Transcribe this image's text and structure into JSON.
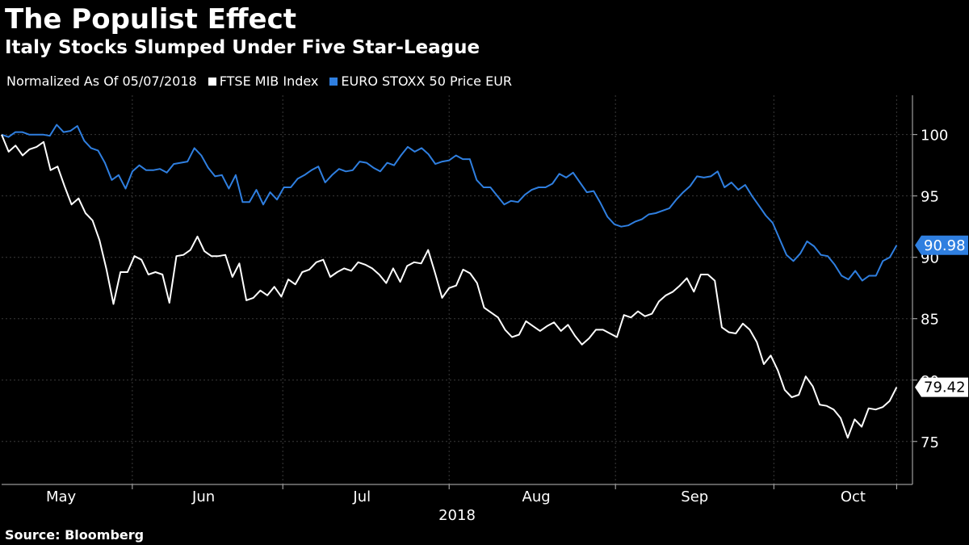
{
  "header": {
    "title": "The Populist Effect",
    "subtitle": "Italy Stocks Slumped Under Five Star-League"
  },
  "legend": {
    "note": "Normalized As Of 05/07/2018"
  },
  "footer": {
    "source": "Source: Bloomberg"
  },
  "colors": {
    "background": "#000000",
    "ftse": "#ffffff",
    "stoxx": "#2f7fe0",
    "grid": "#3a3a3a",
    "axis": "#bbbbbb"
  },
  "chart_data": {
    "type": "line",
    "xlabel": "2018",
    "ylabel": "",
    "ylim": [
      71.5,
      103.2
    ],
    "xlim": [
      0,
      115
    ],
    "grid": true,
    "legend_position": "top-left",
    "x_ticks": [
      {
        "label": "May",
        "x": 7.5
      },
      {
        "label": "Jun",
        "x": 25.5
      },
      {
        "label": "Jul",
        "x": 45.5
      },
      {
        "label": "Aug",
        "x": 67.5
      },
      {
        "label": "Sep",
        "x": 87.5
      },
      {
        "label": "Oct",
        "x": 107.5
      }
    ],
    "y_ticks": [
      75,
      80,
      85,
      90,
      95,
      100
    ],
    "series": [
      {
        "name": "FTSE MIB Index",
        "color": "#ffffff",
        "end_label": "79.42",
        "values": [
          100.0,
          98.6,
          99.1,
          98.3,
          98.8,
          99.0,
          99.4,
          97.1,
          97.4,
          95.8,
          94.3,
          94.8,
          93.6,
          93.0,
          91.4,
          89.0,
          86.2,
          88.8,
          88.8,
          90.1,
          89.8,
          88.6,
          88.8,
          88.6,
          86.3,
          90.1,
          90.2,
          90.6,
          91.7,
          90.5,
          90.1,
          90.1,
          90.2,
          88.4,
          89.5,
          86.5,
          86.7,
          87.3,
          86.9,
          87.6,
          86.8,
          88.2,
          87.8,
          88.8,
          89.0,
          89.6,
          89.8,
          88.4,
          88.8,
          89.1,
          88.9,
          89.6,
          89.4,
          89.1,
          88.6,
          87.9,
          89.1,
          88.0,
          89.3,
          89.6,
          89.5,
          90.6,
          88.7,
          86.7,
          87.5,
          87.7,
          89.0,
          88.7,
          87.9,
          85.9,
          85.5,
          85.1,
          84.1,
          83.5,
          83.7,
          84.8,
          84.4,
          84.0,
          84.4,
          84.7,
          84.0,
          84.5,
          83.6,
          82.9,
          83.4,
          84.1,
          84.1,
          83.8,
          83.5,
          85.3,
          85.1,
          85.6,
          85.2,
          85.4,
          86.4,
          86.9,
          87.2,
          87.7,
          88.3,
          87.2,
          88.6,
          88.6,
          88.1,
          84.3,
          83.9,
          83.8,
          84.6,
          84.1,
          83.1,
          81.3,
          82.0,
          80.8,
          79.2,
          78.6,
          78.8,
          80.3,
          79.5,
          78.0,
          77.9,
          77.6,
          76.9,
          75.3,
          76.8,
          76.2,
          77.7,
          77.6,
          77.8,
          78.3,
          79.42
        ]
      },
      {
        "name": "EURO STOXX 50 Price EUR",
        "color": "#2f7fe0",
        "end_label": "90.98",
        "values": [
          100.0,
          99.8,
          100.2,
          100.2,
          100.0,
          100.0,
          100.0,
          99.9,
          100.8,
          100.2,
          100.3,
          100.7,
          99.5,
          98.9,
          98.7,
          97.7,
          96.3,
          96.7,
          95.6,
          97.0,
          97.5,
          97.1,
          97.1,
          97.2,
          96.9,
          97.6,
          97.7,
          97.8,
          98.9,
          98.3,
          97.3,
          96.6,
          96.7,
          95.6,
          96.7,
          94.5,
          94.5,
          95.5,
          94.3,
          95.3,
          94.7,
          95.7,
          95.7,
          96.4,
          96.7,
          97.1,
          97.4,
          96.1,
          96.7,
          97.2,
          97.0,
          97.1,
          97.8,
          97.7,
          97.3,
          97.0,
          97.7,
          97.5,
          98.3,
          99.0,
          98.6,
          98.9,
          98.4,
          97.6,
          97.8,
          97.9,
          98.3,
          98.0,
          98.0,
          96.3,
          95.7,
          95.7,
          95.0,
          94.3,
          94.6,
          94.5,
          95.1,
          95.5,
          95.7,
          95.7,
          96.0,
          96.8,
          96.5,
          96.9,
          96.1,
          95.3,
          95.4,
          94.4,
          93.3,
          92.7,
          92.5,
          92.6,
          92.9,
          93.1,
          93.5,
          93.6,
          93.8,
          94.0,
          94.7,
          95.3,
          95.8,
          96.6,
          96.5,
          96.6,
          97.0,
          95.7,
          96.1,
          95.5,
          95.9,
          95.0,
          94.2,
          93.4,
          92.8,
          91.5,
          90.2,
          89.7,
          90.3,
          91.3,
          90.9,
          90.2,
          90.1,
          89.4,
          88.5,
          88.2,
          88.9,
          88.1,
          88.5,
          88.5,
          89.7,
          90.0,
          90.98
        ]
      }
    ]
  }
}
